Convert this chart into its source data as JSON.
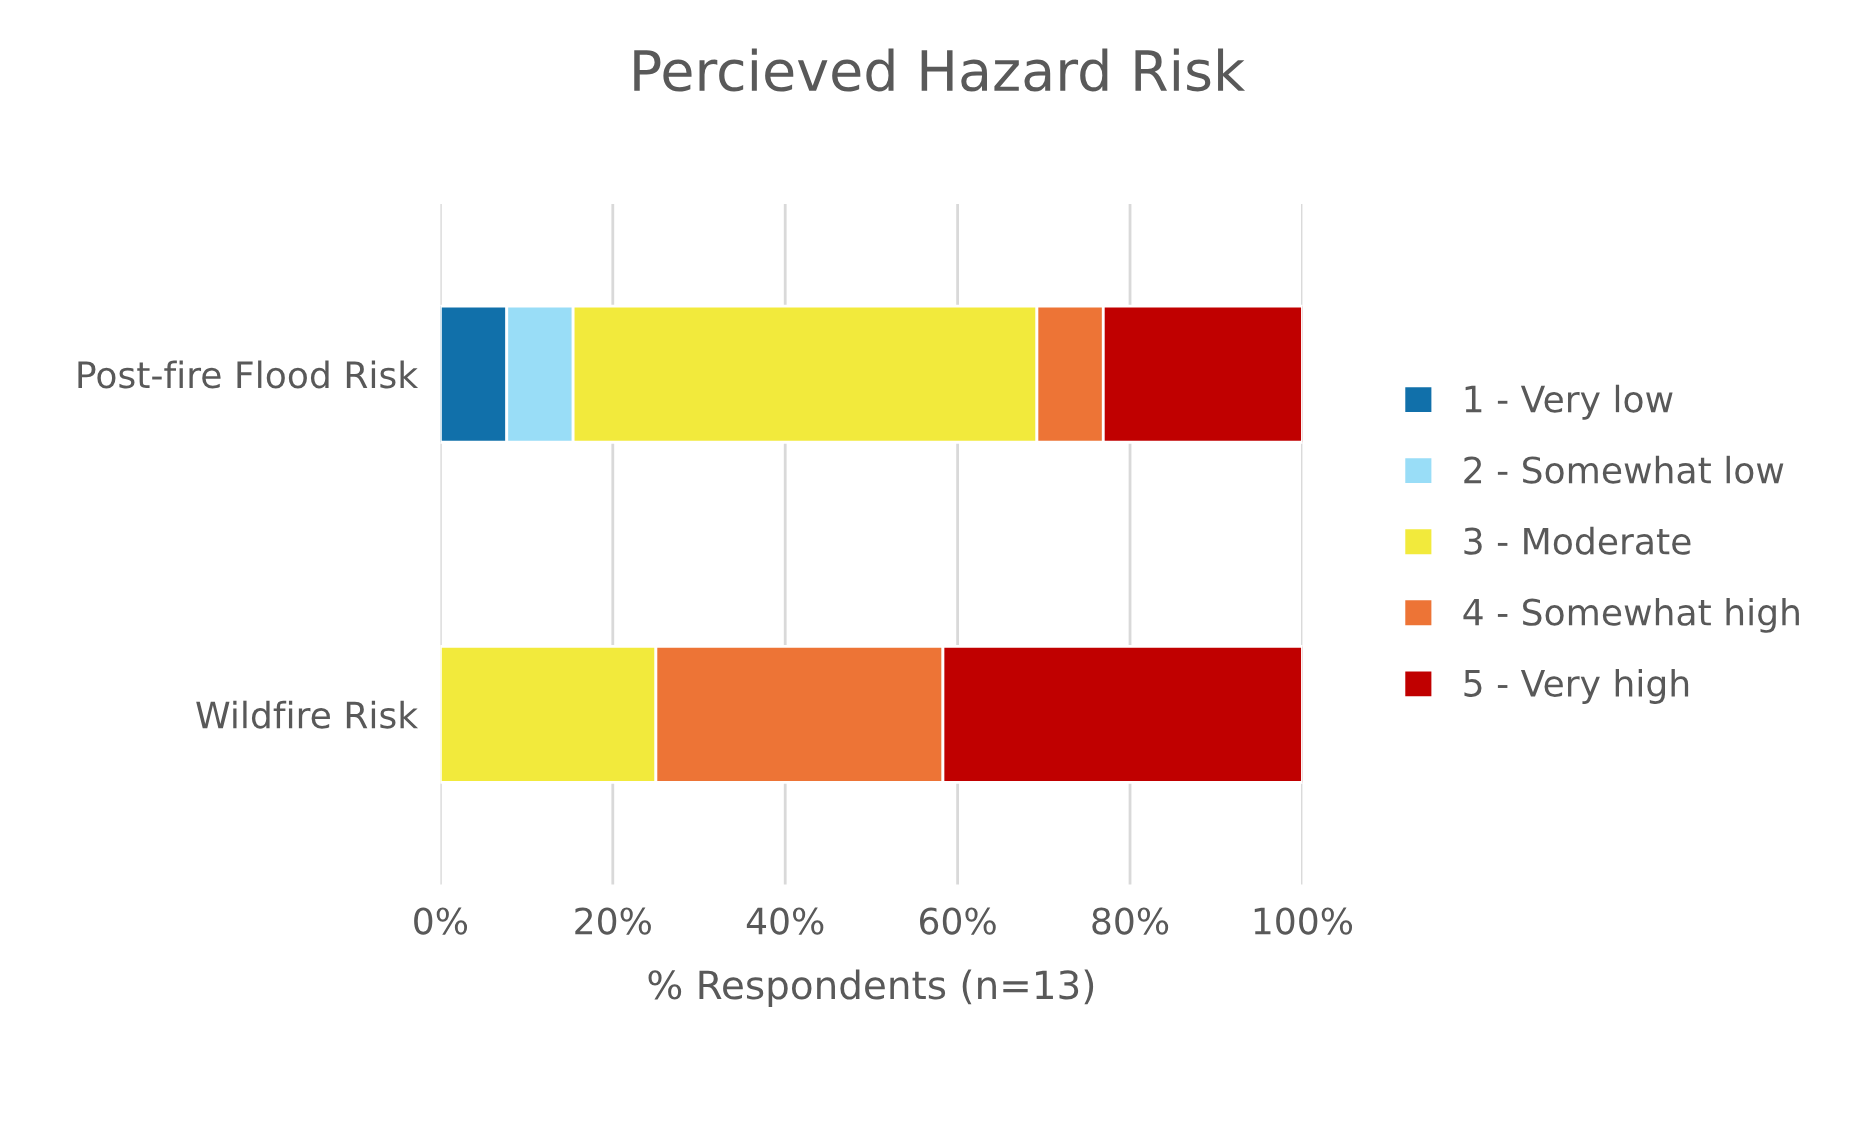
{
  "chart_data": {
    "type": "bar",
    "title": "Percieved Hazard Risk",
    "xlabel": "% Respondents (n=13)",
    "orientation": "horizontal",
    "stacked": true,
    "categories": [
      "Post-fire Flood Risk",
      "Wildfire Risk"
    ],
    "series": [
      {
        "name": "1 - Very low",
        "color": "#1170aa",
        "values": [
          7.7,
          0
        ]
      },
      {
        "name": "2 - Somewhat low",
        "color": "#99ddf7",
        "values": [
          7.7,
          0
        ]
      },
      {
        "name": "3 - Moderate",
        "color": "#f2ea3c",
        "values": [
          53.8,
          25
        ]
      },
      {
        "name": "4 - Somewhat high",
        "color": "#ed7436",
        "values": [
          7.7,
          33.3
        ]
      },
      {
        "name": "5 - Very high",
        "color": "#c00000",
        "values": [
          23.1,
          41.7
        ]
      }
    ],
    "xlim": [
      0,
      100
    ],
    "xticks": [
      {
        "value": 0,
        "label": "0%"
      },
      {
        "value": 20,
        "label": "20%"
      },
      {
        "value": 40,
        "label": "40%"
      },
      {
        "value": 60,
        "label": "60%"
      },
      {
        "value": 80,
        "label": "80%"
      },
      {
        "value": 100,
        "label": "100%"
      }
    ],
    "grid": "x",
    "legend": "right"
  }
}
